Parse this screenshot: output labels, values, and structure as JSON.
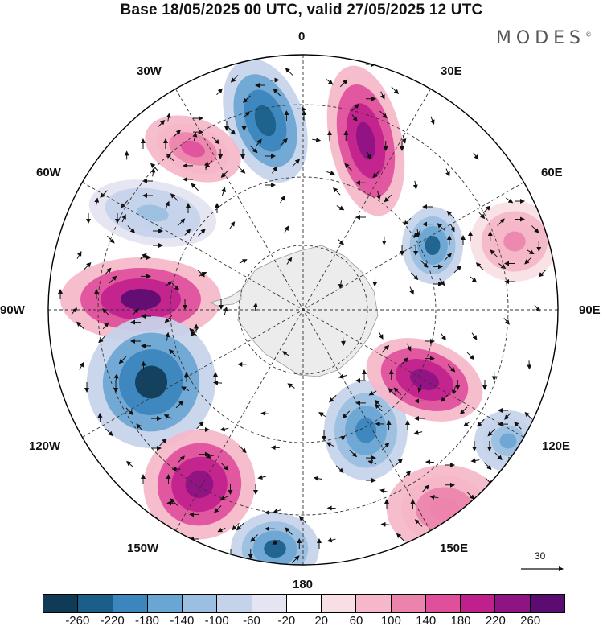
{
  "title": "Base 18/05/2025 00 UTC, valid 27/05/2025 12 UTC",
  "brand": "MODES",
  "brand_mark": "©",
  "longitude_labels": {
    "lon_0": "0",
    "lon_30e": "30E",
    "lon_60e": "60E",
    "lon_90e": "90E",
    "lon_120e": "120E",
    "lon_150e": "150E",
    "lon_180": "180",
    "lon_150w": "150W",
    "lon_120w": "120W",
    "lon_90w": "90W",
    "lon_60w": "60W",
    "lon_30w": "30W"
  },
  "reference_vector": {
    "label": "30"
  },
  "colorbar": {
    "labels": [
      "-260",
      "-220",
      "-180",
      "-140",
      "-100",
      "-60",
      "-20",
      "20",
      "60",
      "100",
      "140",
      "180",
      "220",
      "260"
    ],
    "colors": [
      "#0f3b56",
      "#1a5f8a",
      "#3a86bd",
      "#6aa6d3",
      "#9bbfe0",
      "#c4d2ea",
      "#e4e4f2",
      "#ffffff",
      "#f8dfe4",
      "#f5b7c9",
      "#ec83ad",
      "#df4f9c",
      "#c0208c",
      "#8e1383",
      "#5c0c71"
    ]
  },
  "anomaly_centers": [
    {
      "sign": "neg",
      "level": 0.85
    },
    {
      "sign": "pos",
      "level": 0.9
    },
    {
      "sign": "pos",
      "level": 0.45
    },
    {
      "sign": "neg",
      "level": 0.75
    },
    {
      "sign": "pos",
      "level": 0.95
    },
    {
      "sign": "neg",
      "level": 0.95
    },
    {
      "sign": "pos",
      "level": 0.85
    },
    {
      "sign": "neg",
      "level": 0.75
    },
    {
      "sign": "neg",
      "level": 0.7
    },
    {
      "sign": "pos",
      "level": 0.85
    },
    {
      "sign": "neg",
      "level": 0.45
    },
    {
      "sign": "pos",
      "level": 0.35
    },
    {
      "sign": "neg",
      "level": 0.3
    },
    {
      "sign": "pos",
      "level": 0.3
    }
  ]
}
